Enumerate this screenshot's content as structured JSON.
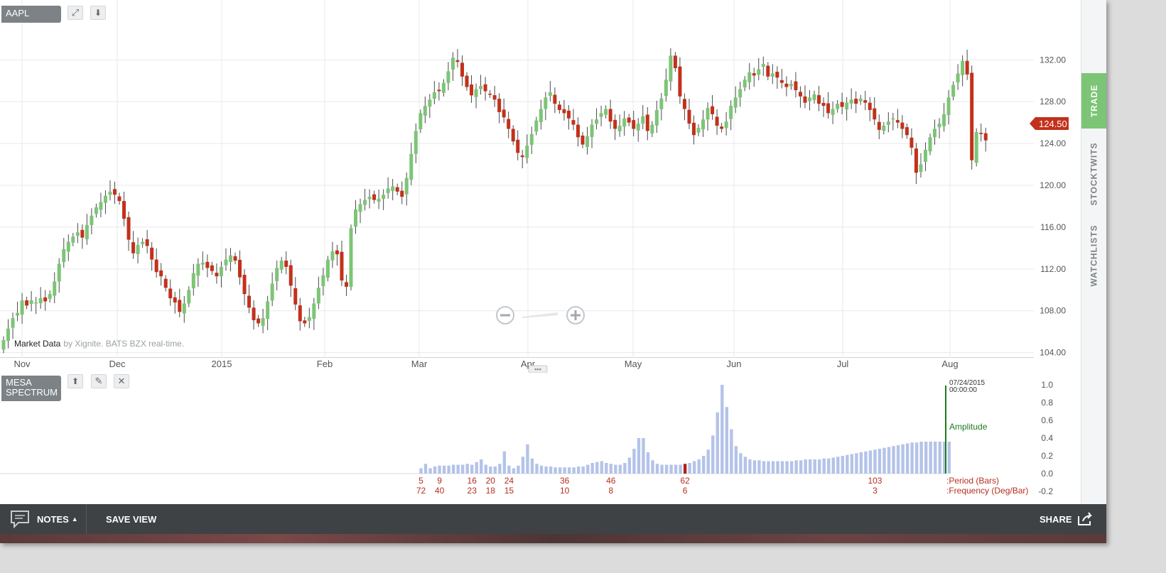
{
  "header": {
    "symbol": "AAPL"
  },
  "price_badge": "124.50",
  "attribution": {
    "source": "Market Data",
    "rest": "by Xignite. BATS BZX real-time."
  },
  "indicator": {
    "name_line1": "MESA",
    "name_line2": "SPECTRUM",
    "date": "07/24/2015",
    "time": "00:00:00",
    "amplitude_label": "Amplitude",
    "period_label": ":Period (Bars)",
    "frequency_label": ":Frequency (Deg/Bar)"
  },
  "sidebar": {
    "tabs": [
      "TRADE",
      "STOCKTWITS",
      "WATCHLISTS"
    ]
  },
  "footer": {
    "notes": "NOTES",
    "save_view": "SAVE VIEW",
    "share": "SHARE"
  },
  "colors": {
    "up": "#7cc576",
    "down": "#c2311b",
    "spectrum": "#b4c3e8",
    "peak": "#a8241c",
    "amplitude": "#1d7a1d",
    "label_red": "#b5301f"
  },
  "chart_data": [
    {
      "type": "candlestick",
      "title": "AAPL",
      "x_tick_labels": [
        "Nov",
        "Dec",
        "2015",
        "Feb",
        "Mar",
        "Apr",
        "May",
        "Jun",
        "Jul",
        "Aug"
      ],
      "y_tick_labels": [
        "104.00",
        "108.00",
        "112.00",
        "116.00",
        "120.00",
        "124.00",
        "128.00",
        "132.00"
      ],
      "ylim": [
        103.5,
        136.5
      ],
      "last_price": 124.5,
      "grid": true,
      "close_values": [
        105.2,
        106.3,
        107.3,
        107.8,
        109.0,
        108.5,
        109.0,
        108.8,
        109.2,
        108.9,
        109.6,
        110.8,
        112.5,
        113.9,
        114.6,
        115.1,
        115.5,
        115.0,
        116.2,
        117.1,
        117.9,
        118.4,
        119.0,
        119.4,
        119.1,
        118.5,
        116.8,
        114.8,
        113.5,
        114.3,
        114.6,
        114.2,
        112.9,
        111.7,
        111.3,
        110.2,
        109.2,
        108.8,
        107.9,
        108.7,
        110.0,
        111.6,
        112.5,
        112.6,
        112.1,
        111.8,
        111.3,
        112.2,
        112.9,
        113.3,
        112.8,
        111.2,
        109.6,
        108.3,
        107.1,
        106.8,
        107.3,
        108.9,
        110.6,
        112.1,
        112.8,
        112.2,
        110.4,
        108.6,
        107.0,
        106.8,
        107.4,
        108.7,
        110.2,
        111.4,
        112.9,
        113.7,
        113.4,
        110.9,
        110.3,
        115.9,
        117.7,
        118.2,
        118.6,
        118.9,
        118.6,
        118.7,
        119.1,
        119.7,
        119.9,
        119.4,
        118.9,
        120.7,
        123.0,
        125.2,
        126.9,
        127.6,
        128.2,
        128.9,
        129.0,
        129.8,
        130.9,
        132.2,
        131.8,
        130.4,
        129.4,
        128.6,
        129.2,
        129.5,
        129.0,
        128.7,
        128.2,
        127.0,
        126.5,
        125.4,
        124.2,
        123.1,
        122.7,
        123.8,
        124.9,
        126.2,
        127.3,
        128.4,
        128.9,
        127.8,
        127.2,
        126.9,
        126.4,
        125.8,
        124.6,
        123.9,
        124.7,
        125.8,
        126.3,
        126.9,
        127.3,
        126.1,
        125.4,
        125.7,
        126.4,
        126.0,
        125.4,
        125.9,
        126.6,
        125.2,
        125.8,
        127.2,
        128.3,
        130.1,
        132.4,
        131.2,
        128.5,
        127.3,
        125.9,
        124.8,
        125.5,
        126.3,
        127.4,
        126.8,
        125.7,
        125.4,
        126.1,
        127.6,
        128.4,
        129.2,
        130.1,
        130.8,
        130.5,
        131.1,
        131.6,
        130.4,
        130.7,
        130.3,
        129.8,
        129.4,
        129.7,
        129.1,
        128.5,
        127.9,
        128.4,
        128.7,
        127.8,
        127.6,
        126.9,
        127.3,
        127.8,
        127.5,
        127.9,
        128.2,
        127.8,
        128.3,
        127.9,
        127.2,
        126.3,
        125.3,
        125.7,
        126.1,
        126.4,
        126.0,
        125.4,
        124.8,
        123.6,
        121.2,
        122.0,
        123.4,
        124.6,
        125.4,
        125.9,
        126.8,
        128.4,
        129.6,
        130.7,
        131.9,
        130.6,
        122.4,
        125.1,
        124.9,
        124.3
      ]
    },
    {
      "type": "bar",
      "title": "MESA SPECTRUM",
      "y_tick_labels": [
        "1.0",
        "0.8",
        "0.6",
        "0.4",
        "0.2",
        "0.0",
        "-0.2"
      ],
      "ylim": [
        -0.2,
        1.0
      ],
      "period_labels": [
        "5",
        "9",
        "16",
        "20",
        "24",
        "36",
        "46",
        "62",
        "103"
      ],
      "frequency_labels": [
        "72",
        "40",
        "23",
        "18",
        "15",
        "10",
        "8",
        "6",
        "3"
      ],
      "peak_period": 62,
      "period_start": 5,
      "values": [
        0.06,
        0.11,
        0.06,
        0.08,
        0.09,
        0.09,
        0.09,
        0.1,
        0.1,
        0.1,
        0.11,
        0.1,
        0.13,
        0.16,
        0.1,
        0.08,
        0.08,
        0.11,
        0.25,
        0.09,
        0.06,
        0.09,
        0.19,
        0.33,
        0.17,
        0.11,
        0.09,
        0.08,
        0.08,
        0.07,
        0.07,
        0.07,
        0.07,
        0.07,
        0.08,
        0.08,
        0.1,
        0.12,
        0.13,
        0.14,
        0.12,
        0.11,
        0.1,
        0.1,
        0.12,
        0.18,
        0.28,
        0.4,
        0.4,
        0.24,
        0.15,
        0.11,
        0.1,
        0.1,
        0.1,
        0.1,
        0.1,
        0.11,
        0.12,
        0.14,
        0.16,
        0.2,
        0.27,
        0.43,
        0.69,
        1.0,
        0.75,
        0.5,
        0.31,
        0.23,
        0.19,
        0.16,
        0.15,
        0.15,
        0.14,
        0.14,
        0.14,
        0.14,
        0.14,
        0.14,
        0.14,
        0.15,
        0.15,
        0.16,
        0.16,
        0.16,
        0.16,
        0.17,
        0.17,
        0.18,
        0.19,
        0.2,
        0.21,
        0.22,
        0.23,
        0.24,
        0.25,
        0.26,
        0.27,
        0.28,
        0.29,
        0.3,
        0.31,
        0.32,
        0.33,
        0.34,
        0.35,
        0.35,
        0.36,
        0.36,
        0.36,
        0.36,
        0.36,
        0.36,
        0.36
      ]
    }
  ]
}
